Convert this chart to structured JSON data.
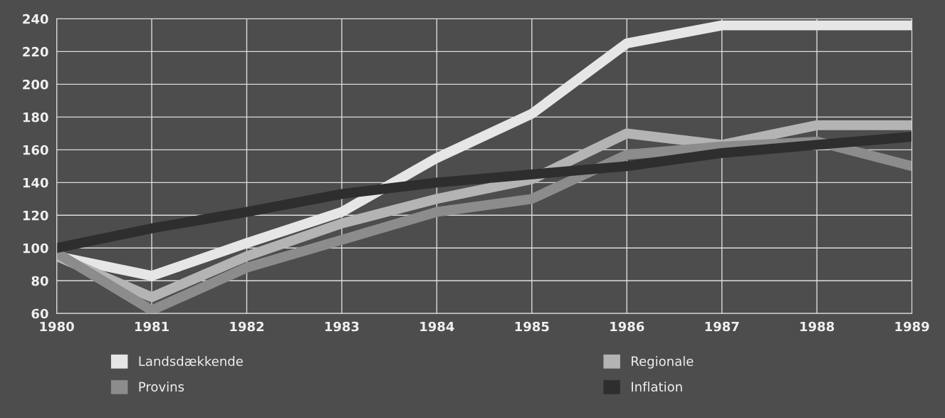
{
  "chart_data": {
    "type": "line",
    "x": [
      1980,
      1981,
      1982,
      1983,
      1984,
      1985,
      1986,
      1987,
      1988,
      1989
    ],
    "series": [
      {
        "name": "Landsdækkende",
        "color": "#e6e6e6",
        "values": [
          95,
          83,
          103,
          122,
          155,
          182,
          225,
          236,
          236,
          236
        ]
      },
      {
        "name": "Regionale",
        "color": "#b4b4b4",
        "values": [
          95,
          70,
          95,
          115,
          130,
          142,
          170,
          163,
          175,
          175
        ]
      },
      {
        "name": "Provins",
        "color": "#8c8c8c",
        "values": [
          97,
          62,
          88,
          105,
          122,
          130,
          157,
          162,
          165,
          150
        ]
      },
      {
        "name": "Inflation",
        "color": "#2e2e2e",
        "values": [
          100,
          112,
          122,
          133,
          140,
          145,
          150,
          158,
          163,
          168
        ]
      }
    ],
    "xlim": [
      1980,
      1989
    ],
    "xticks": [
      1980,
      1981,
      1982,
      1983,
      1984,
      1985,
      1986,
      1987,
      1988,
      1989
    ],
    "ylim": [
      60,
      240
    ],
    "yticks": [
      60,
      80,
      100,
      120,
      140,
      160,
      180,
      200,
      220,
      240
    ],
    "grid": true,
    "legend": "bottom",
    "line_style": "solid"
  }
}
